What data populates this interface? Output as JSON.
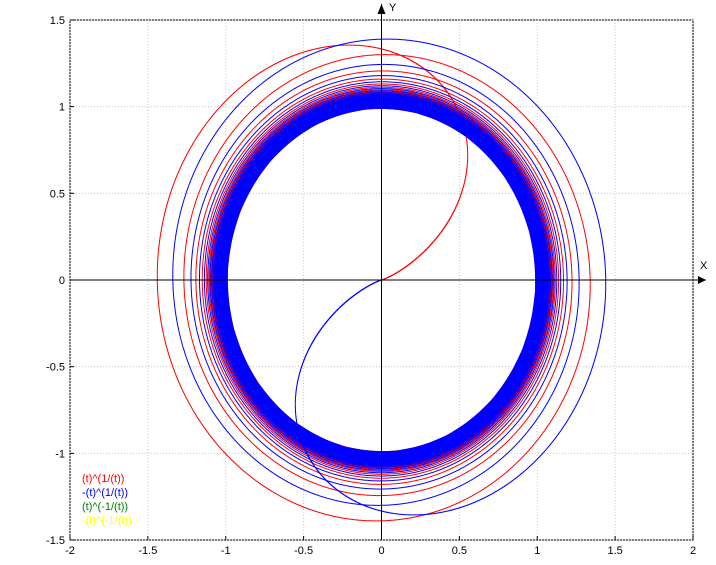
{
  "chart_data": {
    "type": "line",
    "title": "",
    "xlabel": "X",
    "ylabel": "Y",
    "xlim": [
      -2,
      2
    ],
    "ylim": [
      -1.5,
      1.5
    ],
    "grid": true,
    "legend_position": "bottom-left",
    "x_ticks": [
      "-2",
      "-1.5",
      "-1",
      "-0.5",
      "0",
      "0.5",
      "1",
      "1.5",
      "2"
    ],
    "y_ticks": [
      "-1.5",
      "-1",
      "-0.5",
      "0",
      "0.5",
      "1",
      "1.5"
    ],
    "series": [
      {
        "name": "(t)^(1/(t))",
        "color": "#ff0000",
        "exponent": 1,
        "sign": 1
      },
      {
        "name": "-(t)^(1/(t))",
        "color": "#0000ff",
        "exponent": 1,
        "sign": -1
      },
      {
        "name": "(t)^(-1/(t))",
        "color": "#008000",
        "exponent": -1,
        "sign": 1
      },
      {
        "name": "-(t)^(-1/(t))",
        "color": "#ffff00",
        "exponent": -1,
        "sign": -1
      }
    ]
  }
}
